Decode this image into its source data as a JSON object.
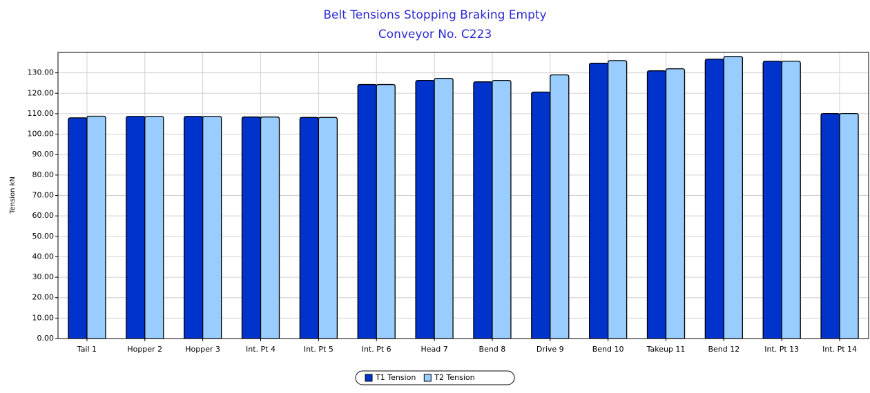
{
  "chart_data": {
    "type": "bar",
    "title": "Belt Tensions Stopping Braking Empty",
    "subtitle": "Conveyor No. C223",
    "y_label": "Tension kN",
    "categories": [
      "Tail 1",
      "Hopper 2",
      "Hopper 3",
      "Int. Pt 4",
      "Int. Pt 5",
      "Int. Pt 6",
      "Head 7",
      "Bend 8",
      "Drive 9",
      "Bend 10",
      "Takeup 11",
      "Bend 12",
      "Int. Pt 13",
      "Int. Pt 14"
    ],
    "series": [
      {
        "name": "T1 Tension",
        "color": "#0033cc",
        "values": [
          108,
          108.7,
          108.7,
          108.4,
          108.2,
          124.3,
          126.3,
          125.6,
          120.6,
          134.7,
          131,
          136.7,
          135.7,
          110.1
        ]
      },
      {
        "name": "T2 Tension",
        "color": "#99ccff",
        "values": [
          108.8,
          108.7,
          108.7,
          108.4,
          108.2,
          124.3,
          127.3,
          126.3,
          129,
          136,
          132,
          138,
          135.7,
          110.1
        ]
      }
    ],
    "ylim": [
      0,
      140
    ],
    "yticks": [
      {
        "value": 0,
        "label": "0.00"
      },
      {
        "value": 10,
        "label": "10.00"
      },
      {
        "value": 20,
        "label": "20.00"
      },
      {
        "value": 30,
        "label": "30.00"
      },
      {
        "value": 40,
        "label": "40.00"
      },
      {
        "value": 50,
        "label": "50.00"
      },
      {
        "value": 60,
        "label": "60.00"
      },
      {
        "value": 70,
        "label": "70.00"
      },
      {
        "value": 80,
        "label": "80.00"
      },
      {
        "value": 90,
        "label": "90.00"
      },
      {
        "value": 100,
        "label": "100.00"
      },
      {
        "value": 110,
        "label": "110.00"
      },
      {
        "value": 120,
        "label": "120.00"
      },
      {
        "value": 130,
        "label": "130.00"
      }
    ],
    "grid": true,
    "legend": "bottom"
  }
}
